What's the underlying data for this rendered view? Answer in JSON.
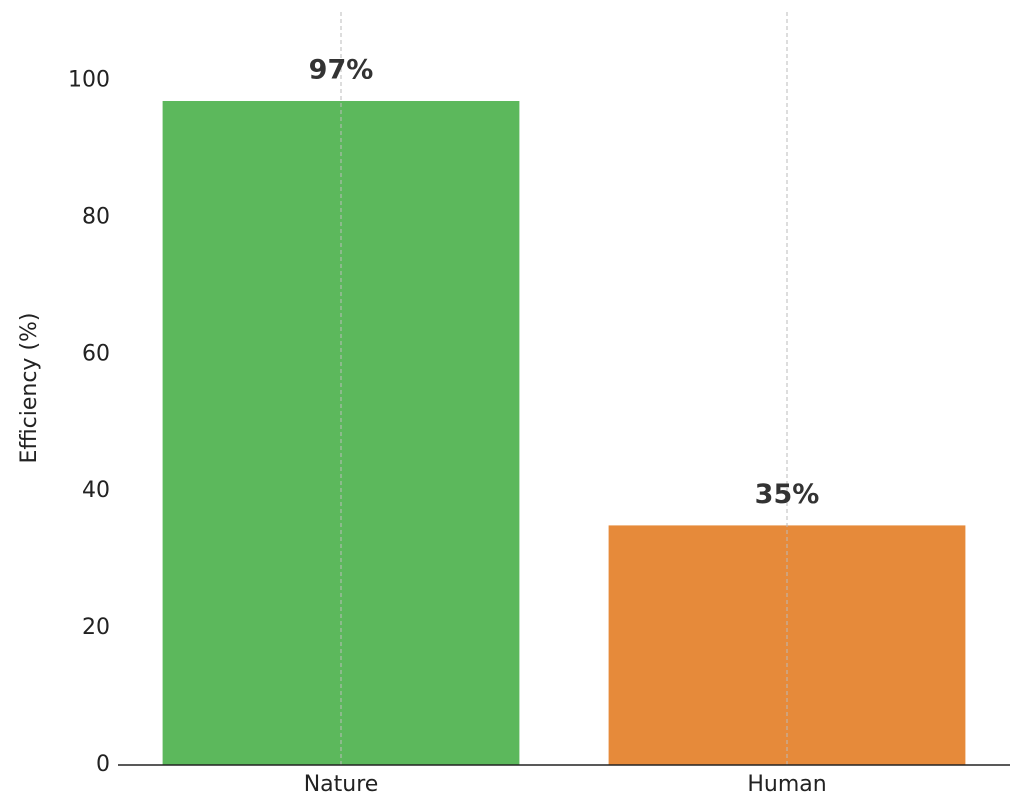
{
  "chart_data": {
    "type": "bar",
    "ylabel": "Efficiency (%)",
    "categories": [
      "Nature",
      "Human"
    ],
    "values": [
      97,
      35
    ],
    "value_labels": [
      "97%",
      "35%"
    ],
    "colors": [
      "#5cb85c",
      "#e68a3a"
    ],
    "ylim": [
      0,
      110
    ],
    "yticks": [
      0,
      20,
      40,
      60,
      80,
      100
    ],
    "grid": "x"
  }
}
